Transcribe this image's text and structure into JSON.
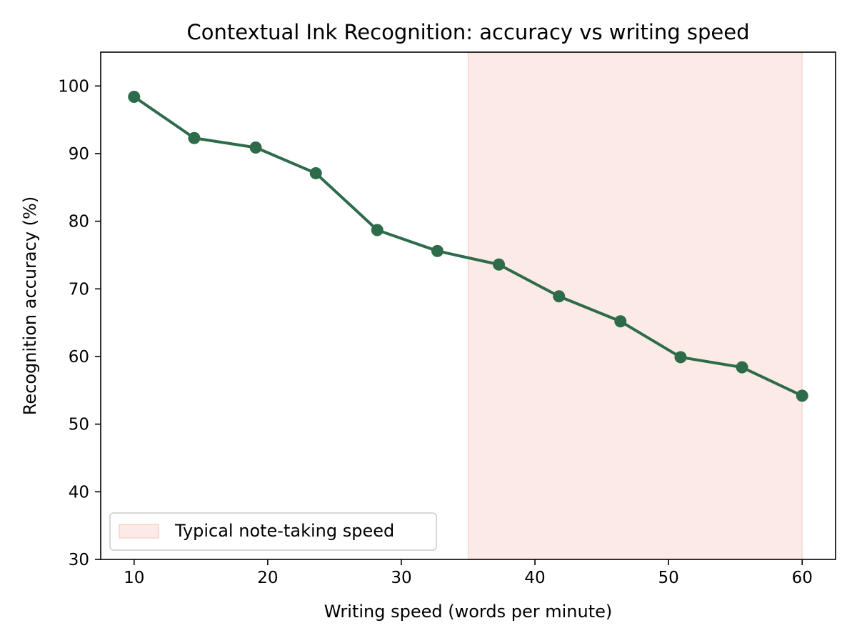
{
  "chart_data": {
    "type": "line",
    "title": "Contextual Ink Recognition: accuracy vs writing speed",
    "xlabel": "Writing speed (words per minute)",
    "ylabel": "Recognition accuracy (%)",
    "xlim": [
      7.5,
      62.5
    ],
    "ylim": [
      30,
      105
    ],
    "xticks": [
      10,
      20,
      30,
      40,
      50,
      60
    ],
    "yticks": [
      30,
      40,
      50,
      60,
      70,
      80,
      90,
      100
    ],
    "grid": false,
    "series": [
      {
        "color": "#2e6b4a",
        "marker": "circle",
        "x": [
          10,
          14.5,
          19.1,
          23.6,
          28.2,
          32.7,
          37.3,
          41.8,
          46.4,
          50.9,
          55.5,
          60
        ],
        "y": [
          98.4,
          92.3,
          90.9,
          87.1,
          78.7,
          75.6,
          73.6,
          68.9,
          65.2,
          59.9,
          58.4,
          54.2
        ]
      }
    ],
    "shaded_region": {
      "x_range": [
        35,
        60
      ],
      "color": "#fbeae6",
      "label": "Typical note-taking speed"
    },
    "legend": {
      "placement": "lower-left",
      "entries": [
        "Typical note-taking speed"
      ]
    }
  }
}
